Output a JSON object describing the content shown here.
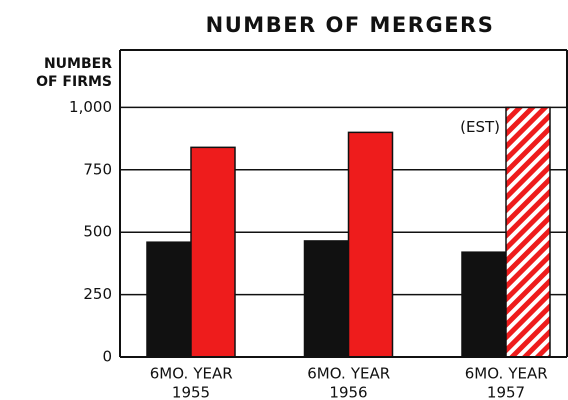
{
  "chart_data": {
    "type": "bar",
    "title": "NUMBER OF MERGERS",
    "y_label": [
      "NUMBER",
      "OF FIRMS"
    ],
    "categories": [
      "1955",
      "1956",
      "1957"
    ],
    "series": [
      {
        "name": "6MO.",
        "color": "#111111",
        "values": [
          460,
          465,
          420
        ]
      },
      {
        "name": "YEAR",
        "color": "#ee1c1c",
        "values": [
          840,
          900,
          1000
        ],
        "hatch": [
          false,
          false,
          true
        ]
      }
    ],
    "annotation": "(EST)",
    "ylim": [
      0,
      1230
    ],
    "yticks": [
      0,
      250,
      500,
      750,
      {
        "value": 1000,
        "label": "1,000"
      }
    ],
    "grid": true
  }
}
